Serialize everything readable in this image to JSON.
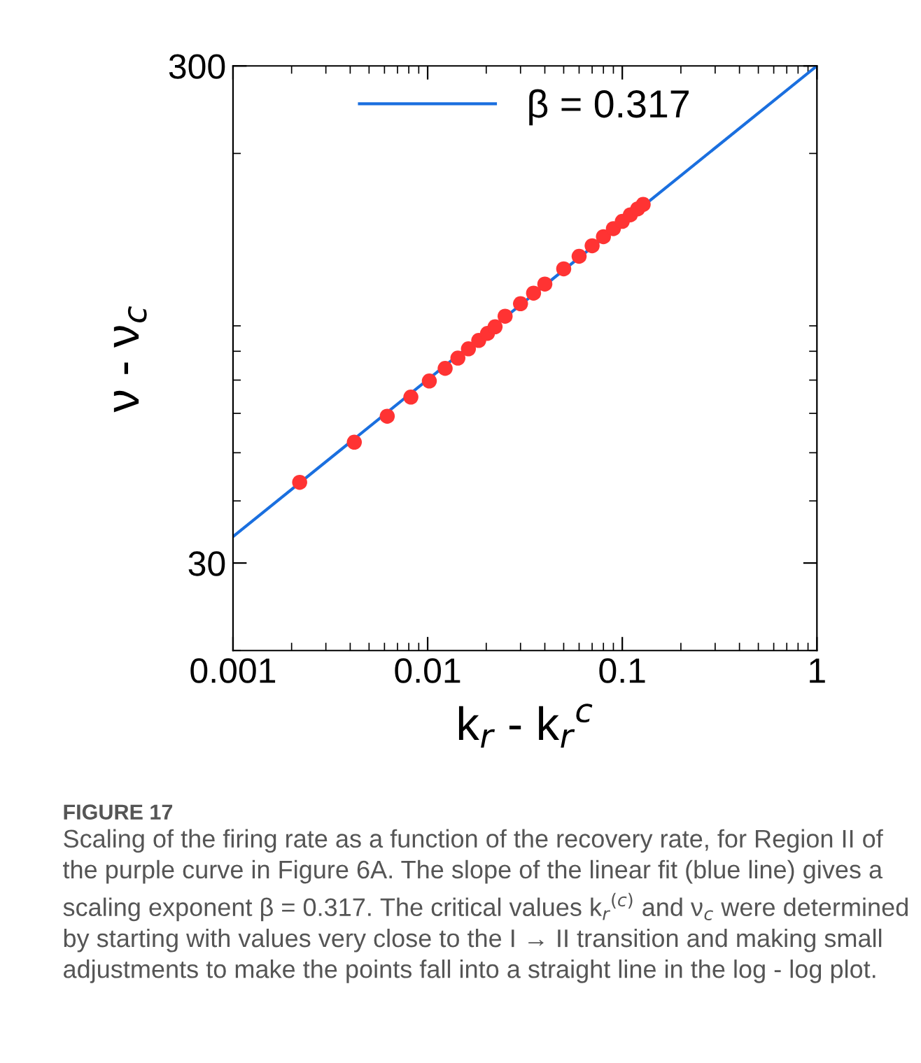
{
  "chart_data": {
    "type": "scatter",
    "xlabel": "k$_{r}$ - k$_{r}$$^{c}$",
    "ylabel": "ν - ν$_{c}$",
    "log": "xy",
    "xlim": [
      0.001,
      1
    ],
    "ylim": [
      20,
      300
    ],
    "xticks": [
      0.001,
      0.01,
      0.1,
      1
    ],
    "yticks": [
      30,
      300
    ],
    "grid": false,
    "legend": "top",
    "series": [
      {
        "type": "line",
        "name": "β = 0.317",
        "color": "#1a6fdf",
        "line_style": "solid",
        "marker": "none",
        "x": [
          0.001,
          1
        ],
        "values": [
          33.9,
          300
        ]
      },
      {
        "color": "#ff3333",
        "marker": "circle",
        "x": [
          0.0022,
          0.0042,
          0.0062,
          0.0082,
          0.0102,
          0.0123,
          0.0143,
          0.0162,
          0.0183,
          0.0203,
          0.0222,
          0.025,
          0.03,
          0.035,
          0.04,
          0.05,
          0.06,
          0.07,
          0.08,
          0.09,
          0.1,
          0.11,
          0.12,
          0.128
        ],
        "values": [
          43.6,
          52.5,
          59.2,
          64.7,
          69.7,
          73.9,
          77.5,
          80.9,
          84.1,
          86.9,
          89.6,
          94.1,
          99.7,
          104.7,
          109.2,
          117.2,
          124.2,
          130.4,
          136.0,
          141.2,
          146.0,
          150.5,
          154.7,
          157.9
        ]
      }
    ],
    "annotations": [
      "FIGURE 17",
      "Scaling of the firing rate as a function of the recovery rate, for Region II of the purple curve in Figure 6A. The slope of the linear fit (blue line) gives a scaling exponent β = 0.317. The critical values k$_{r}$$^{(c)}$ and ν$_{c}$ were determined by starting with values very close to the I → II transition and making small adjustments to make the points fall into a straight line in the log - log plot."
    ]
  }
}
